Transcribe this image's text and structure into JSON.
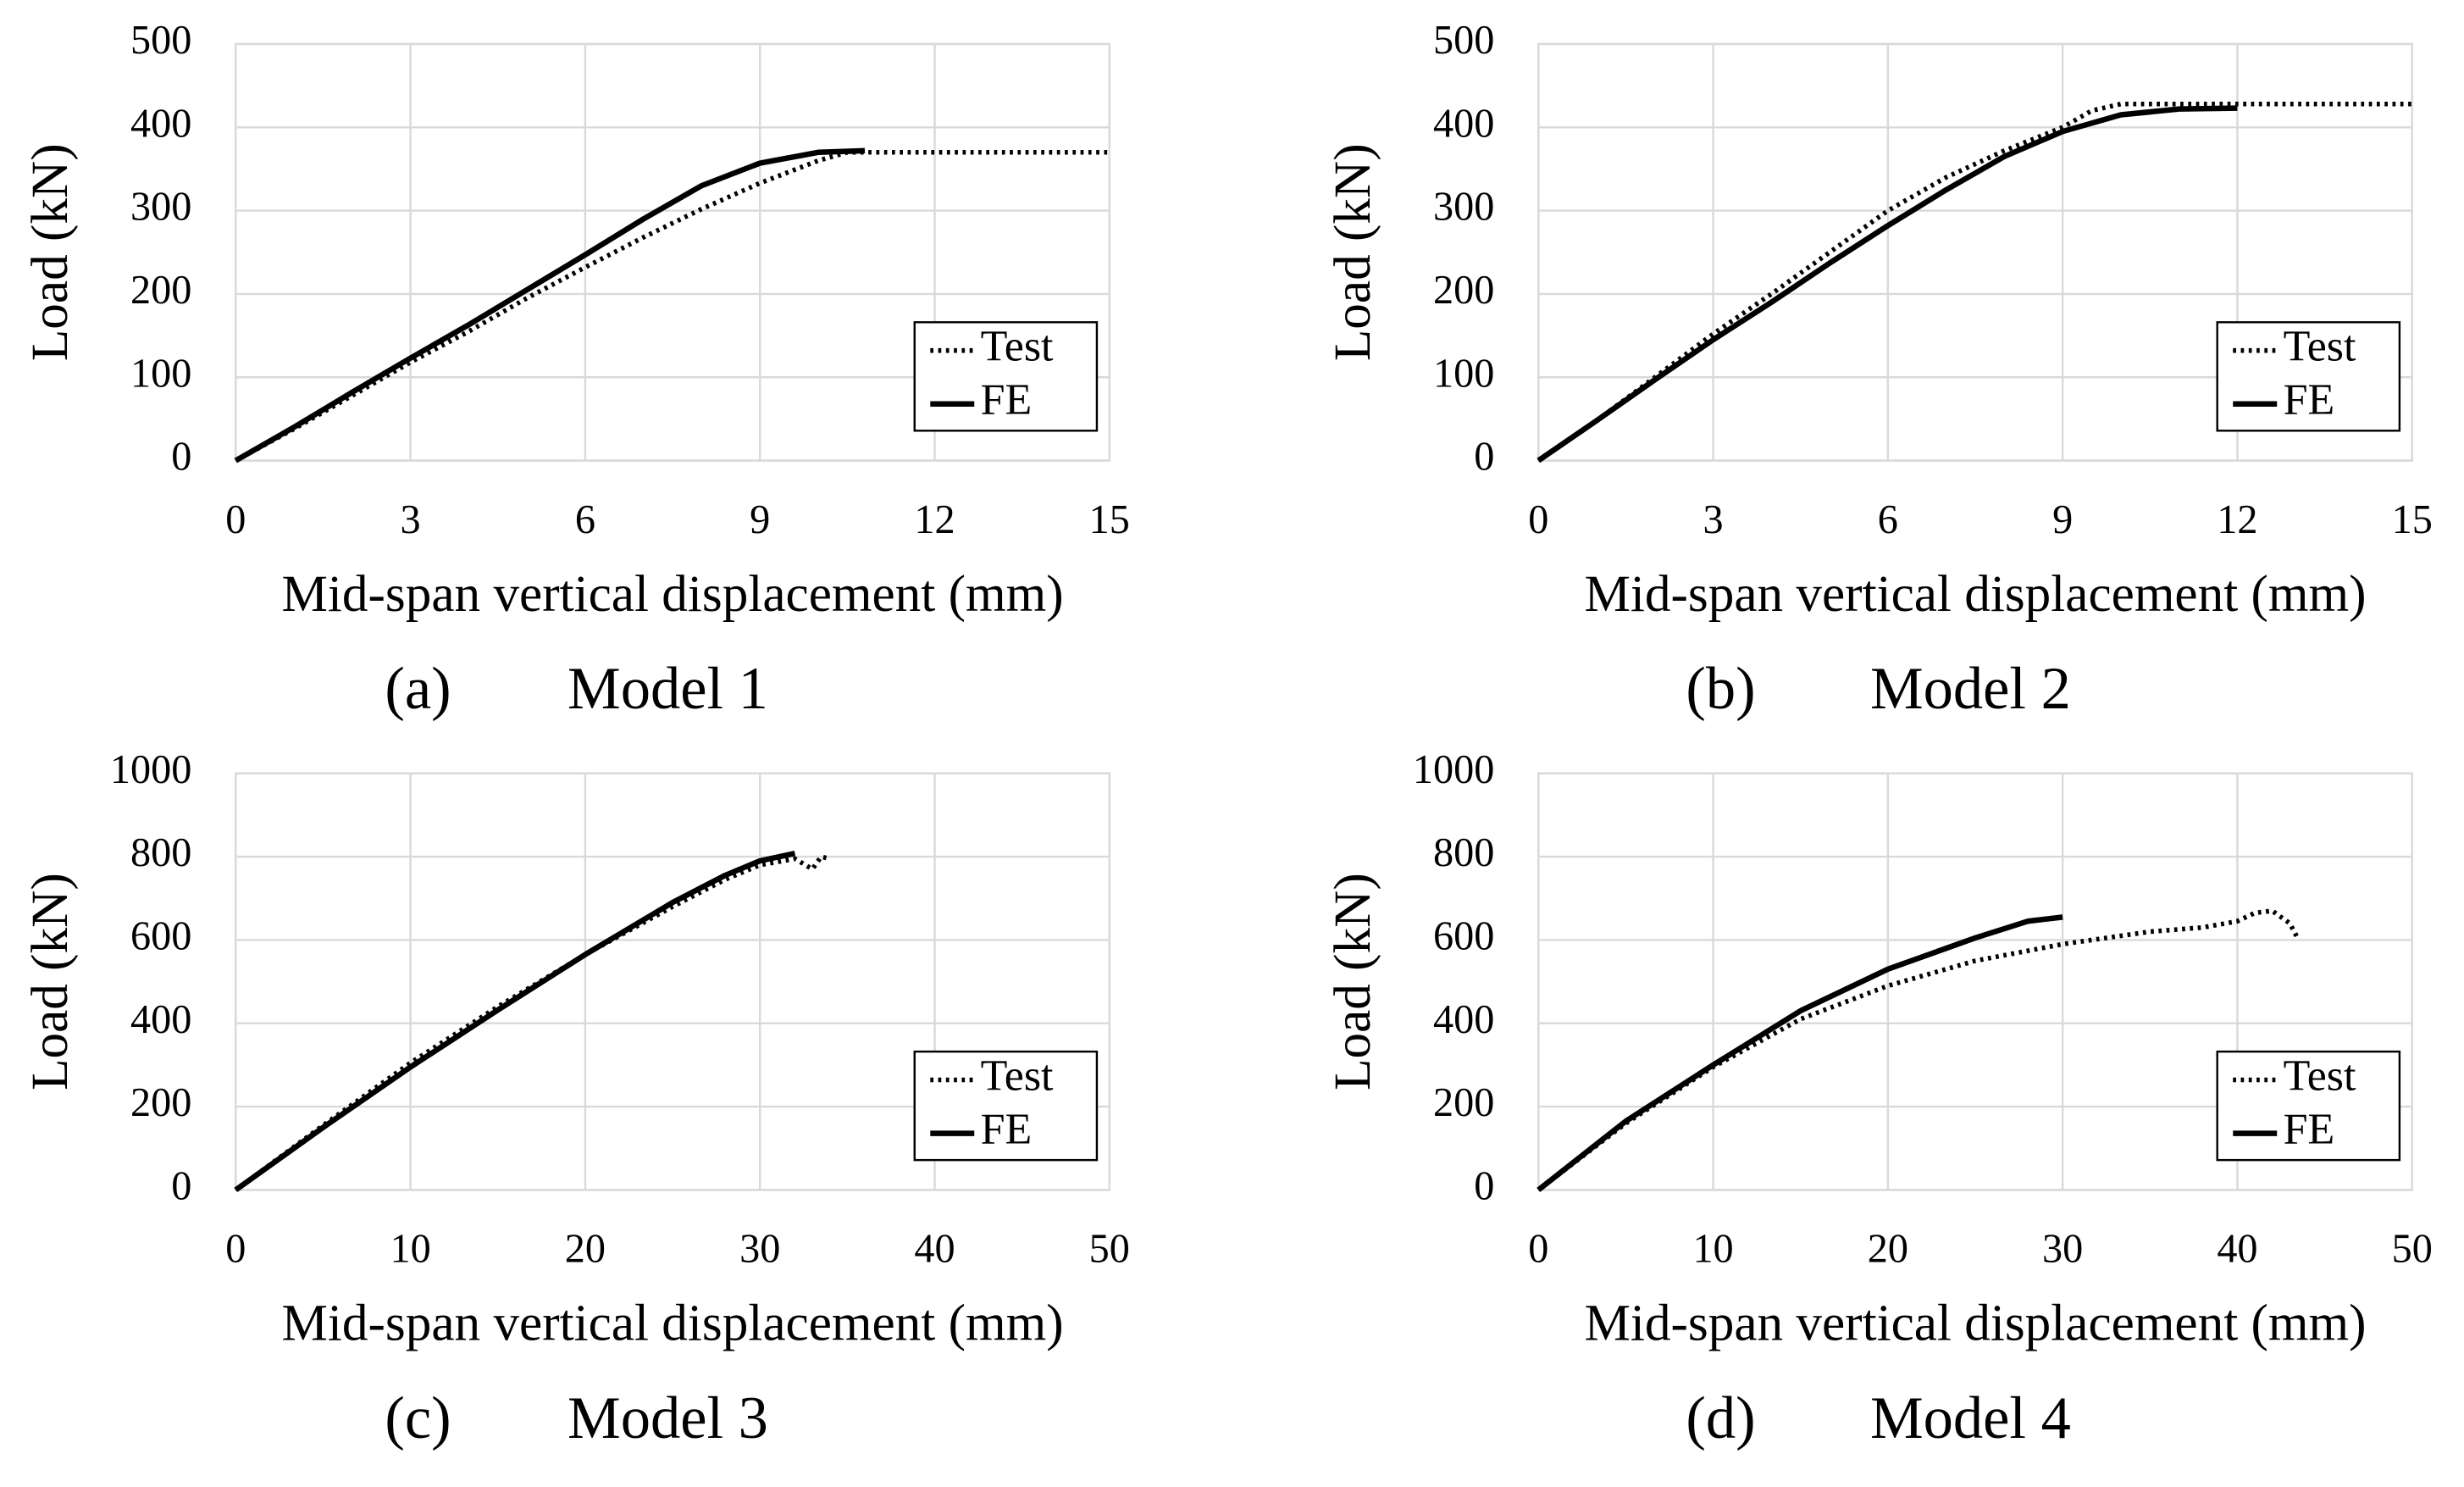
{
  "chart_data": [
    {
      "type": "line",
      "label": "(a)",
      "title": "Model 1",
      "xlabel": "Mid-span vertical displacement (mm)",
      "ylabel": "Load (kN)",
      "xlim": [
        0,
        15
      ],
      "ylim": [
        0,
        500
      ],
      "xticks": [
        0,
        3,
        6,
        9,
        12,
        15
      ],
      "yticks": [
        0,
        100,
        200,
        300,
        400,
        500
      ],
      "grid": true,
      "legend": "lower right",
      "series": [
        {
          "name": "Test",
          "color": "#000000",
          "dash": "dotted",
          "x": [
            0,
            1,
            2,
            3,
            4,
            5,
            6,
            7,
            8,
            9,
            10,
            10.5,
            11,
            12,
            13,
            14,
            15
          ],
          "values": [
            0,
            38,
            78,
            118,
            155,
            195,
            232,
            268,
            302,
            333,
            360,
            370,
            370,
            370,
            370,
            370,
            370
          ]
        },
        {
          "name": "FE",
          "color": "#000000",
          "dash": "solid",
          "x": [
            0,
            1,
            2,
            3,
            4,
            5,
            6,
            7,
            8,
            9,
            10,
            10.8
          ],
          "values": [
            0,
            40,
            82,
            123,
            163,
            205,
            247,
            290,
            330,
            357,
            370,
            372
          ]
        }
      ]
    },
    {
      "type": "line",
      "label": "(b)",
      "title": "Model 2",
      "xlabel": "Mid-span vertical displacement (mm)",
      "ylabel": "Load (kN)",
      "xlim": [
        0,
        15
      ],
      "ylim": [
        0,
        500
      ],
      "xticks": [
        0,
        3,
        6,
        9,
        12,
        15
      ],
      "yticks": [
        0,
        100,
        200,
        300,
        400,
        500
      ],
      "grid": true,
      "legend": "lower right",
      "series": [
        {
          "name": "Test",
          "color": "#000000",
          "dash": "dotted",
          "x": [
            0,
            1,
            2,
            3,
            4,
            5,
            6,
            7,
            8,
            9,
            9.5,
            10,
            11,
            12,
            13,
            14,
            15
          ],
          "values": [
            0,
            48,
            100,
            152,
            200,
            250,
            300,
            340,
            372,
            400,
            420,
            428,
            428,
            428,
            428,
            428,
            428
          ]
        },
        {
          "name": "FE",
          "color": "#000000",
          "dash": "solid",
          "x": [
            0,
            1,
            2,
            3,
            4,
            5,
            6,
            7,
            8,
            9,
            10,
            11,
            12
          ],
          "values": [
            0,
            48,
            97,
            145,
            190,
            237,
            282,
            325,
            365,
            395,
            415,
            422,
            423
          ]
        }
      ]
    },
    {
      "type": "line",
      "label": "(c)",
      "title": "Model 3",
      "xlabel": "Mid-span vertical displacement (mm)",
      "ylabel": "Load (kN)",
      "xlim": [
        0,
        50
      ],
      "ylim": [
        0,
        1000
      ],
      "xticks": [
        0,
        10,
        20,
        30,
        40,
        50
      ],
      "yticks": [
        0,
        200,
        400,
        600,
        800,
        1000
      ],
      "grid": true,
      "legend": "lower right",
      "series": [
        {
          "name": "Test",
          "color": "#000000",
          "dash": "dotted",
          "x": [
            0,
            5,
            10,
            15,
            20,
            25,
            28,
            30,
            32,
            33,
            33.5,
            34
          ],
          "values": [
            0,
            155,
            305,
            440,
            565,
            680,
            745,
            780,
            795,
            770,
            800,
            795
          ]
        },
        {
          "name": "FE",
          "color": "#000000",
          "dash": "solid",
          "x": [
            0,
            5,
            10,
            15,
            20,
            25,
            28,
            30,
            32
          ],
          "values": [
            0,
            150,
            295,
            432,
            565,
            690,
            755,
            790,
            808
          ]
        }
      ]
    },
    {
      "type": "line",
      "label": "(d)",
      "title": "Model 4",
      "xlabel": "Mid-span vertical displacement (mm)",
      "ylabel": "Load (kN)",
      "xlim": [
        0,
        50
      ],
      "ylim": [
        0,
        1000
      ],
      "xticks": [
        0,
        10,
        20,
        30,
        40,
        50
      ],
      "yticks": [
        0,
        200,
        400,
        600,
        800,
        1000
      ],
      "grid": true,
      "legend": "lower right",
      "series": [
        {
          "name": "Test",
          "color": "#000000",
          "dash": "dotted",
          "x": [
            0,
            5,
            10,
            15,
            20,
            25,
            30,
            35,
            38,
            40,
            41,
            42,
            43,
            43.5
          ],
          "values": [
            0,
            160,
            295,
            410,
            490,
            550,
            590,
            620,
            630,
            645,
            665,
            670,
            640,
            600
          ]
        },
        {
          "name": "FE",
          "color": "#000000",
          "dash": "solid",
          "x": [
            0,
            5,
            10,
            15,
            20,
            25,
            28,
            30
          ],
          "values": [
            0,
            165,
            300,
            430,
            530,
            605,
            645,
            655
          ]
        }
      ]
    }
  ]
}
